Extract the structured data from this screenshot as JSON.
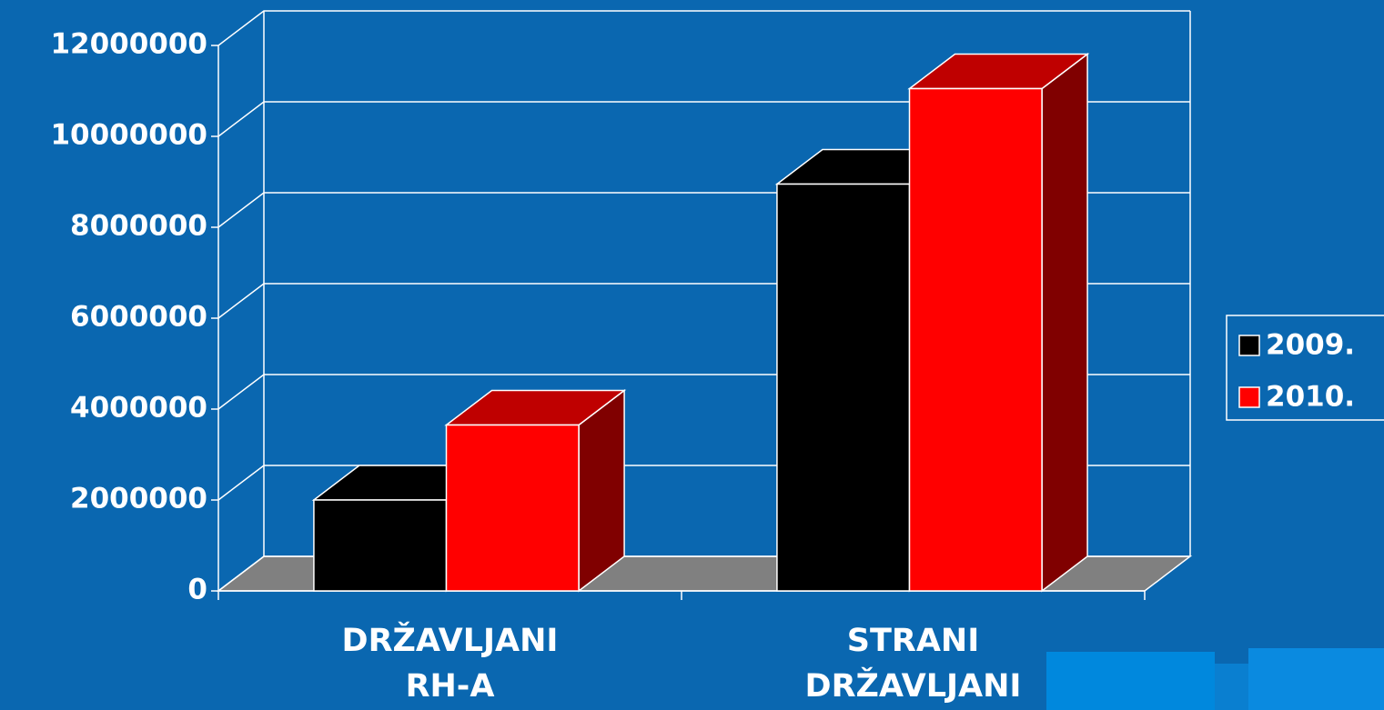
{
  "chart_data": {
    "type": "bar3d",
    "categories": [
      "DRŽAVLJANI RH-A",
      "STRANI DRŽAVLJANI"
    ],
    "series": [
      {
        "name": "2009.",
        "color": "#000000",
        "values": [
          2000000,
          8950000
        ]
      },
      {
        "name": "2010.",
        "color": "#ff0000",
        "values": [
          3650000,
          11050000
        ]
      }
    ],
    "ylim": [
      0,
      12000000
    ],
    "yticks": [
      0,
      2000000,
      4000000,
      6000000,
      8000000,
      10000000,
      12000000
    ],
    "grid": true,
    "legend": "right"
  }
}
